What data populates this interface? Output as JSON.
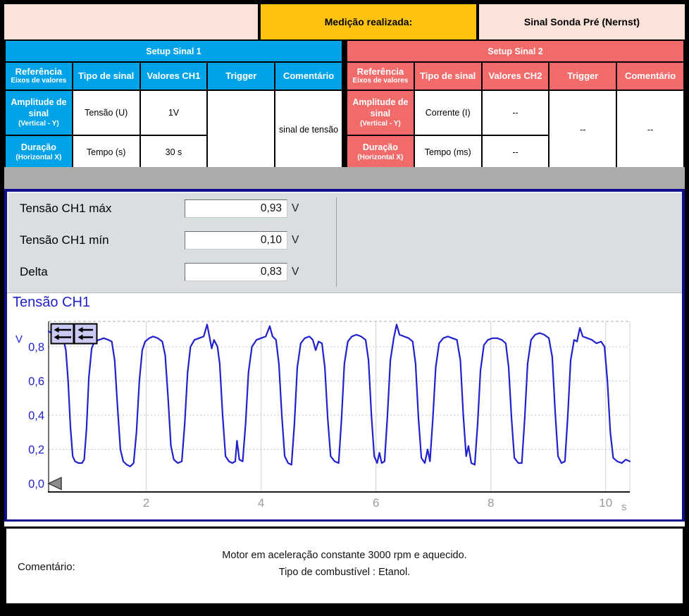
{
  "header": {
    "measured_label": "Medição realizada:",
    "signal_name": "Sinal Sonda Pré (Nernst)"
  },
  "tables": [
    {
      "title": "Setup Sinal 1",
      "accent": "#00a2e8",
      "columns": {
        "ref": "Referência",
        "ref_sub": "Eixos de valores",
        "tipo": "Tipo de sinal",
        "valores": "Valores CH1",
        "trigger": "Trigger",
        "comentario": "Comentário"
      },
      "rows": [
        {
          "label": "Amplitude de sinal",
          "label_sub": "(Vertical - Y)",
          "tipo": "Tensão (U)",
          "valor": "1V"
        },
        {
          "label": "Duração",
          "label_sub": "(Horizontal X)",
          "tipo": "Tempo (s)",
          "valor": "30 s"
        }
      ],
      "trigger_value": "",
      "comentario_value": "sinal de tensão"
    },
    {
      "title": "Setup Sinal 2",
      "accent": "#f26b6b",
      "columns": {
        "ref": "Referência",
        "ref_sub": "Eixos de valores",
        "tipo": "Tipo de sinal",
        "valores": "Valores CH2",
        "trigger": "Trigger",
        "comentario": "Comentário"
      },
      "rows": [
        {
          "label": "Amplitude de sinal",
          "label_sub": "(Vertical - Y)",
          "tipo": "Corrente (I)",
          "valor": "--"
        },
        {
          "label": "Duração",
          "label_sub": "(Horizontal X)",
          "tipo": "Tempo (ms)",
          "valor": "--"
        }
      ],
      "trigger_value": "--",
      "comentario_value": "--"
    }
  ],
  "measurements": {
    "rows": [
      {
        "label": "Tensão CH1 máx",
        "value": "0,93",
        "unit": "V"
      },
      {
        "label": "Tensão CH1 mín",
        "value": "0,10",
        "unit": "V"
      },
      {
        "label": "Delta",
        "value": "0,83",
        "unit": "V"
      }
    ]
  },
  "chart_data": {
    "type": "line",
    "title": "Tensão CH1",
    "y_unit_label": "V",
    "x_unit_label": "s",
    "xlim": [
      0.3,
      10.42
    ],
    "ylim": [
      -0.049,
      0.948
    ],
    "xticks": [
      2,
      4,
      6,
      8,
      10
    ],
    "xtick_labels": [
      "2",
      "4",
      "6",
      "8",
      "10"
    ],
    "yticks": [
      0.0,
      0.2,
      0.4,
      0.6,
      0.8
    ],
    "ytick_labels": [
      "0,0",
      "0,2",
      "0,4",
      "0,6",
      "0,8"
    ],
    "grid": true,
    "legend": "none",
    "trigger_level": 0.0,
    "series": [
      {
        "name": "Tensão CH1",
        "color": "#2020cd",
        "points": [
          [
            0.3,
            0.89
          ],
          [
            0.4,
            0.87
          ],
          [
            0.45,
            0.86
          ],
          [
            0.5,
            0.87
          ],
          [
            0.56,
            0.84
          ],
          [
            0.6,
            0.78
          ],
          [
            0.64,
            0.6
          ],
          [
            0.68,
            0.33
          ],
          [
            0.72,
            0.16
          ],
          [
            0.76,
            0.13
          ],
          [
            0.82,
            0.12
          ],
          [
            0.88,
            0.12
          ],
          [
            0.92,
            0.14
          ],
          [
            0.96,
            0.32
          ],
          [
            1.0,
            0.62
          ],
          [
            1.05,
            0.79
          ],
          [
            1.1,
            0.83
          ],
          [
            1.18,
            0.84
          ],
          [
            1.26,
            0.85
          ],
          [
            1.34,
            0.84
          ],
          [
            1.4,
            0.83
          ],
          [
            1.45,
            0.72
          ],
          [
            1.5,
            0.45
          ],
          [
            1.55,
            0.2
          ],
          [
            1.6,
            0.13
          ],
          [
            1.66,
            0.11
          ],
          [
            1.72,
            0.1
          ],
          [
            1.78,
            0.12
          ],
          [
            1.83,
            0.3
          ],
          [
            1.88,
            0.6
          ],
          [
            1.93,
            0.78
          ],
          [
            1.98,
            0.83
          ],
          [
            2.05,
            0.85
          ],
          [
            2.12,
            0.86
          ],
          [
            2.2,
            0.85
          ],
          [
            2.28,
            0.83
          ],
          [
            2.33,
            0.75
          ],
          [
            2.38,
            0.5
          ],
          [
            2.43,
            0.22
          ],
          [
            2.48,
            0.14
          ],
          [
            2.55,
            0.12
          ],
          [
            2.62,
            0.13
          ],
          [
            2.67,
            0.35
          ],
          [
            2.72,
            0.65
          ],
          [
            2.77,
            0.8
          ],
          [
            2.84,
            0.84
          ],
          [
            2.92,
            0.85
          ],
          [
            3.0,
            0.86
          ],
          [
            3.06,
            0.93
          ],
          [
            3.1,
            0.86
          ],
          [
            3.14,
            0.79
          ],
          [
            3.18,
            0.84
          ],
          [
            3.24,
            0.8
          ],
          [
            3.28,
            0.7
          ],
          [
            3.33,
            0.4
          ],
          [
            3.38,
            0.16
          ],
          [
            3.44,
            0.13
          ],
          [
            3.5,
            0.12
          ],
          [
            3.55,
            0.13
          ],
          [
            3.58,
            0.25
          ],
          [
            3.62,
            0.14
          ],
          [
            3.68,
            0.13
          ],
          [
            3.73,
            0.35
          ],
          [
            3.78,
            0.65
          ],
          [
            3.84,
            0.8
          ],
          [
            3.92,
            0.84
          ],
          [
            4.0,
            0.85
          ],
          [
            4.08,
            0.86
          ],
          [
            4.15,
            0.92
          ],
          [
            4.2,
            0.86
          ],
          [
            4.26,
            0.84
          ],
          [
            4.31,
            0.7
          ],
          [
            4.36,
            0.4
          ],
          [
            4.41,
            0.16
          ],
          [
            4.47,
            0.12
          ],
          [
            4.53,
            0.11
          ],
          [
            4.58,
            0.35
          ],
          [
            4.63,
            0.68
          ],
          [
            4.69,
            0.82
          ],
          [
            4.76,
            0.85
          ],
          [
            4.84,
            0.86
          ],
          [
            4.9,
            0.84
          ],
          [
            4.95,
            0.78
          ],
          [
            5.0,
            0.83
          ],
          [
            5.06,
            0.82
          ],
          [
            5.11,
            0.68
          ],
          [
            5.16,
            0.38
          ],
          [
            5.21,
            0.16
          ],
          [
            5.28,
            0.13
          ],
          [
            5.35,
            0.12
          ],
          [
            5.4,
            0.38
          ],
          [
            5.45,
            0.7
          ],
          [
            5.51,
            0.83
          ],
          [
            5.58,
            0.86
          ],
          [
            5.66,
            0.87
          ],
          [
            5.74,
            0.86
          ],
          [
            5.82,
            0.84
          ],
          [
            5.87,
            0.72
          ],
          [
            5.92,
            0.4
          ],
          [
            5.97,
            0.16
          ],
          [
            6.02,
            0.12
          ],
          [
            6.06,
            0.18
          ],
          [
            6.1,
            0.12
          ],
          [
            6.15,
            0.13
          ],
          [
            6.2,
            0.4
          ],
          [
            6.25,
            0.72
          ],
          [
            6.31,
            0.85
          ],
          [
            6.36,
            0.93
          ],
          [
            6.41,
            0.87
          ],
          [
            6.49,
            0.86
          ],
          [
            6.57,
            0.85
          ],
          [
            6.64,
            0.83
          ],
          [
            6.69,
            0.7
          ],
          [
            6.74,
            0.38
          ],
          [
            6.79,
            0.15
          ],
          [
            6.85,
            0.12
          ],
          [
            6.9,
            0.2
          ],
          [
            6.94,
            0.13
          ],
          [
            6.99,
            0.38
          ],
          [
            7.04,
            0.68
          ],
          [
            7.1,
            0.82
          ],
          [
            7.17,
            0.85
          ],
          [
            7.25,
            0.86
          ],
          [
            7.33,
            0.85
          ],
          [
            7.41,
            0.84
          ],
          [
            7.47,
            0.72
          ],
          [
            7.52,
            0.4
          ],
          [
            7.57,
            0.16
          ],
          [
            7.61,
            0.22
          ],
          [
            7.66,
            0.12
          ],
          [
            7.72,
            0.11
          ],
          [
            7.77,
            0.35
          ],
          [
            7.82,
            0.66
          ],
          [
            7.88,
            0.81
          ],
          [
            7.95,
            0.84
          ],
          [
            8.03,
            0.85
          ],
          [
            8.11,
            0.85
          ],
          [
            8.19,
            0.84
          ],
          [
            8.26,
            0.82
          ],
          [
            8.31,
            0.68
          ],
          [
            8.36,
            0.38
          ],
          [
            8.41,
            0.15
          ],
          [
            8.48,
            0.12
          ],
          [
            8.54,
            0.12
          ],
          [
            8.59,
            0.38
          ],
          [
            8.64,
            0.7
          ],
          [
            8.7,
            0.84
          ],
          [
            8.77,
            0.87
          ],
          [
            8.85,
            0.88
          ],
          [
            8.93,
            0.87
          ],
          [
            9.01,
            0.85
          ],
          [
            9.07,
            0.74
          ],
          [
            9.12,
            0.42
          ],
          [
            9.17,
            0.16
          ],
          [
            9.23,
            0.12
          ],
          [
            9.29,
            0.13
          ],
          [
            9.34,
            0.4
          ],
          [
            9.39,
            0.72
          ],
          [
            9.45,
            0.84
          ],
          [
            9.5,
            0.83
          ],
          [
            9.55,
            0.91
          ],
          [
            9.6,
            0.86
          ],
          [
            9.68,
            0.85
          ],
          [
            9.76,
            0.84
          ],
          [
            9.84,
            0.82
          ],
          [
            9.92,
            0.83
          ],
          [
            9.98,
            0.8
          ],
          [
            10.03,
            0.6
          ],
          [
            10.08,
            0.3
          ],
          [
            10.13,
            0.15
          ],
          [
            10.2,
            0.13
          ],
          [
            10.28,
            0.12
          ],
          [
            10.35,
            0.14
          ],
          [
            10.42,
            0.13
          ]
        ]
      }
    ]
  },
  "footer": {
    "label": "Comentário:",
    "line1": "Motor em aceleração constante 3000 rpm e aquecido.",
    "line2": "Tipo de combustível : Etanol."
  },
  "colors": {
    "table1_accent": "#00a2e8",
    "table2_accent": "#f26b6b",
    "highlight_orange": "#ffc20e",
    "panel_peach": "#fbe3d9",
    "gray_bar": "#ababab",
    "section_border_navy": "#10108c",
    "trace_blue": "#2020cd",
    "measure_panel_bg": "#d9dee1"
  }
}
